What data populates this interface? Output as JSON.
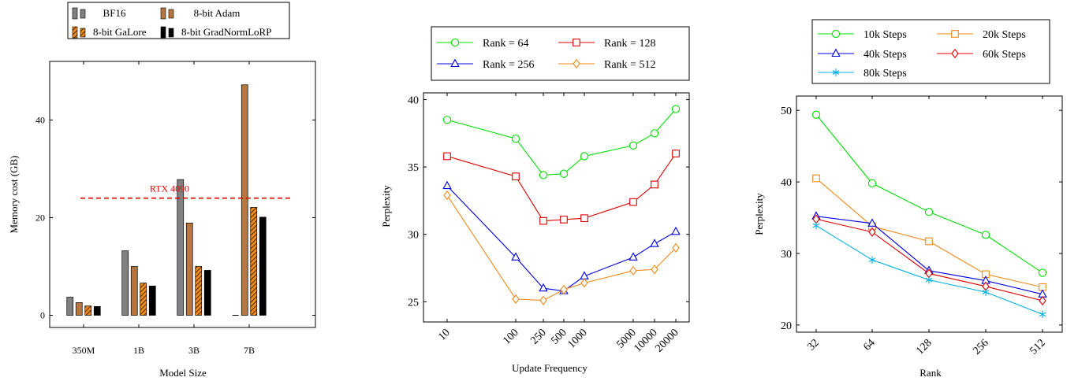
{
  "chart_data": [
    {
      "type": "bar",
      "xlabel": "Model Size",
      "ylabel": "Memory cost (GB)",
      "categories": [
        "350M",
        "1B",
        "3B",
        "7B"
      ],
      "ylim": [
        -2.5,
        52
      ],
      "yticks": [
        0,
        20,
        40
      ],
      "series": [
        {
          "name": "BF16",
          "values": [
            3.7,
            13.2,
            27.8,
            0
          ],
          "color": "#808080",
          "pattern": "solid"
        },
        {
          "name": "8-bit Adam",
          "values": [
            2.6,
            10.0,
            18.9,
            47.2
          ],
          "color": "#b5773f",
          "pattern": "solid"
        },
        {
          "name": "8-bit GaLore",
          "values": [
            1.9,
            6.6,
            10.0,
            22.1
          ],
          "color": "#f08a1a",
          "pattern": "hatched"
        },
        {
          "name": "8-bit GradNormLoRP",
          "values": [
            1.8,
            6.0,
            9.2,
            20.1
          ],
          "color": "#000000",
          "pattern": "solid"
        }
      ],
      "reference_line": {
        "label": "RTX 4090",
        "value": 24,
        "color": "#e00000"
      },
      "legend_position": "top"
    },
    {
      "type": "line",
      "xlabel": "Update Frequency",
      "ylabel": "Perplexity",
      "x_scale": "categorical",
      "x": [
        "10",
        "100",
        "250",
        "500",
        "1000",
        "5000",
        "10000",
        "20000"
      ],
      "ylim": [
        23.5,
        40.5
      ],
      "yticks": [
        25,
        30,
        35,
        40
      ],
      "series": [
        {
          "name": "Rank = 64",
          "color": "#00e000",
          "marker": "circle",
          "values": [
            38.5,
            37.1,
            34.4,
            34.5,
            35.8,
            36.6,
            37.5,
            39.3
          ]
        },
        {
          "name": "Rank = 128",
          "color": "#e00000",
          "marker": "square",
          "values": [
            35.8,
            34.3,
            31.0,
            31.1,
            31.2,
            32.4,
            33.7,
            36.0
          ]
        },
        {
          "name": "Rank = 256",
          "color": "#0000e0",
          "marker": "triangle",
          "values": [
            33.6,
            28.3,
            26.0,
            25.8,
            26.9,
            28.3,
            29.3,
            30.2
          ]
        },
        {
          "name": "Rank = 512",
          "color": "#f08a1a",
          "marker": "diamond",
          "values": [
            32.9,
            25.2,
            25.1,
            25.9,
            26.4,
            27.3,
            27.4,
            29.0
          ]
        }
      ],
      "legend_position": "top"
    },
    {
      "type": "line",
      "xlabel": "Rank",
      "ylabel": "Perplexity",
      "x_scale": "log2",
      "x": [
        "32",
        "64",
        "128",
        "256",
        "512"
      ],
      "ylim": [
        19,
        52
      ],
      "yticks": [
        20,
        30,
        40,
        50
      ],
      "series": [
        {
          "name": "10k Steps",
          "color": "#00e000",
          "marker": "circle",
          "values": [
            49.4,
            39.8,
            35.8,
            32.6,
            27.3
          ]
        },
        {
          "name": "20k Steps",
          "color": "#f08a1a",
          "marker": "square",
          "values": [
            40.5,
            33.8,
            31.7,
            27.1,
            25.3
          ]
        },
        {
          "name": "40k Steps",
          "color": "#0000e0",
          "marker": "triangle",
          "values": [
            35.2,
            34.2,
            27.6,
            26.2,
            24.3
          ]
        },
        {
          "name": "60k Steps",
          "color": "#e00000",
          "marker": "diamond",
          "values": [
            34.8,
            33.0,
            27.2,
            25.4,
            23.4
          ]
        },
        {
          "name": "80k Steps",
          "color": "#00b0e0",
          "marker": "star",
          "values": [
            33.9,
            29.1,
            26.3,
            24.6,
            21.5
          ]
        }
      ],
      "legend_position": "top"
    }
  ]
}
